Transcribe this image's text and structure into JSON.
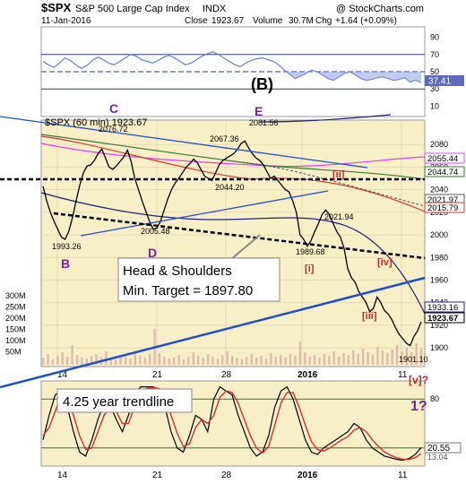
{
  "header": {
    "symbol": "$SPX",
    "name": "S&P 500 Large Cap Index",
    "exchange": "INDX",
    "watermark": "@ StockCharts.com",
    "date": "11-Jan-2016",
    "close_label": "Close",
    "close_value": "1923.67",
    "volume_label": "Volume",
    "volume_value": "30.7M",
    "chg_label": "Chg",
    "chg_value": "+1.64 (+0.09%)"
  },
  "chart_data": [
    {
      "type": "line",
      "panel": "top-indicator",
      "ylim": [
        0,
        100
      ],
      "tick_labels": [
        "90",
        "70",
        "50",
        "30",
        "10"
      ],
      "guide_levels": [
        70,
        50,
        30
      ],
      "last_value_label": "37.41",
      "annotation": "(B)",
      "values": [
        62,
        58,
        55,
        60,
        66,
        63,
        58,
        54,
        57,
        63,
        67,
        64,
        60,
        58,
        62,
        66,
        70,
        68,
        64,
        62,
        60,
        63,
        67,
        69,
        66,
        62,
        58,
        60,
        64,
        68,
        71,
        73,
        70,
        66,
        62,
        58,
        56,
        60,
        63,
        65,
        66,
        64,
        62,
        58,
        52,
        47,
        42,
        45,
        48,
        52,
        50,
        46,
        42,
        40,
        44,
        48,
        50,
        46,
        42,
        40,
        41,
        43,
        44,
        42,
        40,
        41,
        43,
        38,
        40,
        37.41
      ]
    },
    {
      "type": "line",
      "panel": "price",
      "legend": "$SPX (60 min) 1923.67",
      "ylim": [
        1885,
        2100
      ],
      "y_ticks": [
        1900,
        1920,
        1940,
        1960,
        1980,
        2000,
        2020,
        2040,
        2060,
        2080
      ],
      "x_labels": [
        "14",
        "21",
        "28",
        "2016",
        "11"
      ],
      "right_labels": [
        "2055.44",
        "2044.74",
        "2021.97",
        "2015.79",
        "1933.16",
        "1923.67"
      ],
      "volume_labels": [
        "300M",
        "250M",
        "200M",
        "150M",
        "100M",
        "50M"
      ],
      "price_annotations": [
        "2076.72",
        "2081.56",
        "2067.36",
        "2044.20",
        "2005.48",
        "1993.26",
        "2021.94",
        "1989.68",
        "1901.10"
      ],
      "wave_labels": [
        "B",
        "C",
        "D",
        "E",
        "(B)",
        "[i]",
        "[ii]",
        "[iii]",
        "[iv]",
        "[v]?"
      ],
      "callout": [
        "Head & Shoulders",
        "Min. Target = 1897.80"
      ],
      "values": [
        2043,
        2030,
        2020,
        2012,
        2005,
        1998,
        1996,
        2003,
        2015,
        2030,
        2044,
        2055,
        2061,
        2062,
        2066,
        2072,
        2076,
        2068,
        2060,
        2058,
        2061,
        2065,
        2069,
        2075,
        2065,
        2050,
        2040,
        2030,
        2021,
        2012,
        2005,
        2006,
        2012,
        2022,
        2032,
        2040,
        2046,
        2050,
        2055,
        2060,
        2063,
        2067,
        2064,
        2058,
        2052,
        2050,
        2048,
        2055,
        2062,
        2066,
        2068,
        2070,
        2072,
        2076,
        2081,
        2083,
        2077,
        2072,
        2068,
        2066,
        2062,
        2056,
        2050,
        2052,
        2048,
        2044,
        2040,
        2038,
        2030,
        2020,
        2000,
        1996,
        1990,
        1995,
        2003,
        2010,
        2018,
        2022,
        2018,
        2010,
        2003,
        1998,
        1988,
        1970,
        1962,
        1958,
        1950,
        1945,
        1940,
        1932,
        1935,
        1945,
        1940,
        1933,
        1930,
        1925,
        1918,
        1912,
        1908,
        1904,
        1902,
        1910,
        1915,
        1923
      ]
    },
    {
      "type": "line",
      "panel": "bottom-indicator",
      "ylim": [
        0,
        100
      ],
      "tick_labels": [
        "80",
        "20"
      ],
      "guide_levels": [
        80,
        20
      ],
      "last_value_labels": [
        "20.55",
        "13.04"
      ],
      "x_labels": [
        "14",
        "21",
        "28",
        "2016",
        "11"
      ],
      "callout": "4.25 year trendline",
      "wave_labels": [
        "[v]?",
        "1?"
      ],
      "series": [
        {
          "values": [
            30,
            60,
            85,
            90,
            70,
            40,
            15,
            10,
            30,
            55,
            75,
            72,
            55,
            40,
            60,
            85,
            95,
            95,
            95,
            92,
            70,
            40,
            20,
            15,
            35,
            60,
            55,
            40,
            80,
            95,
            90,
            85,
            60,
            40,
            20,
            10,
            15,
            35,
            70,
            90,
            95,
            80,
            55,
            30,
            15,
            12,
            20,
            25,
            30,
            35,
            40,
            50,
            45,
            30,
            20,
            15,
            10,
            8,
            6,
            5,
            7,
            12,
            20.55
          ]
        },
        {
          "values": [
            35,
            45,
            65,
            85,
            80,
            60,
            35,
            18,
            20,
            40,
            60,
            70,
            65,
            50,
            50,
            70,
            88,
            93,
            94,
            93,
            85,
            60,
            38,
            22,
            25,
            45,
            55,
            50,
            60,
            82,
            90,
            88,
            75,
            55,
            35,
            20,
            14,
            22,
            48,
            75,
            88,
            88,
            70,
            48,
            28,
            18,
            16,
            20,
            25,
            30,
            34,
            42,
            45,
            40,
            30,
            22,
            15,
            11,
            8,
            6,
            6,
            8,
            13.04
          ]
        }
      ]
    }
  ],
  "colors": {
    "price_bg": "#f9efc6",
    "price_line": "#000000",
    "accent_purple": "#7b1fa2",
    "wave_red": "#c62828",
    "trend_blue": "#1e4fd1",
    "ma_red": "#d23b30",
    "ma_green": "#2e7d32",
    "ma_navy": "#1a237e",
    "ma_magenta": "#e040fb",
    "osc_red": "#d32f2f",
    "grid": "#d8cfa6"
  }
}
